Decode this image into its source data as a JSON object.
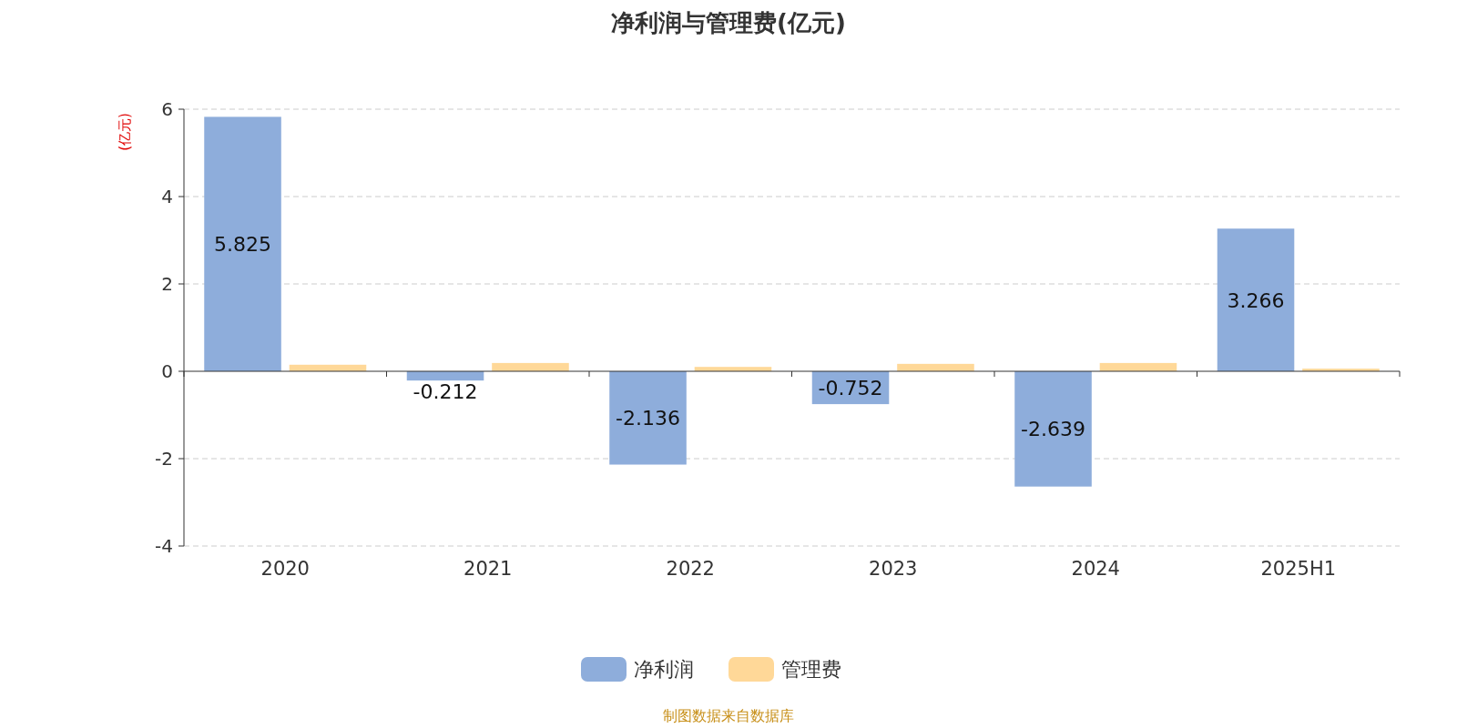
{
  "chart_data": {
    "type": "bar",
    "title": "净利润与管理费(亿元)",
    "ylabel": "(亿元)",
    "categories": [
      "2020",
      "2021",
      "2022",
      "2023",
      "2024",
      "2025H1"
    ],
    "series": [
      {
        "name": "净利润",
        "color": "#8eaddb",
        "values": [
          5.825,
          -0.212,
          -2.136,
          -0.752,
          -2.639,
          3.266
        ],
        "value_labels": [
          "5.825",
          "-0.212",
          "-2.136",
          "-0.752",
          "-2.639",
          "3.266"
        ]
      },
      {
        "name": "管理费",
        "color": "#ffd898",
        "values": [
          0.15,
          0.19,
          0.1,
          0.17,
          0.19,
          0.06
        ]
      }
    ],
    "ylim": [
      -4,
      6
    ],
    "yticks": [
      -4,
      -2,
      0,
      2,
      4,
      6
    ],
    "grid": "y",
    "legend": "bottom",
    "annotations": [
      "制图数据来自数据库"
    ]
  }
}
